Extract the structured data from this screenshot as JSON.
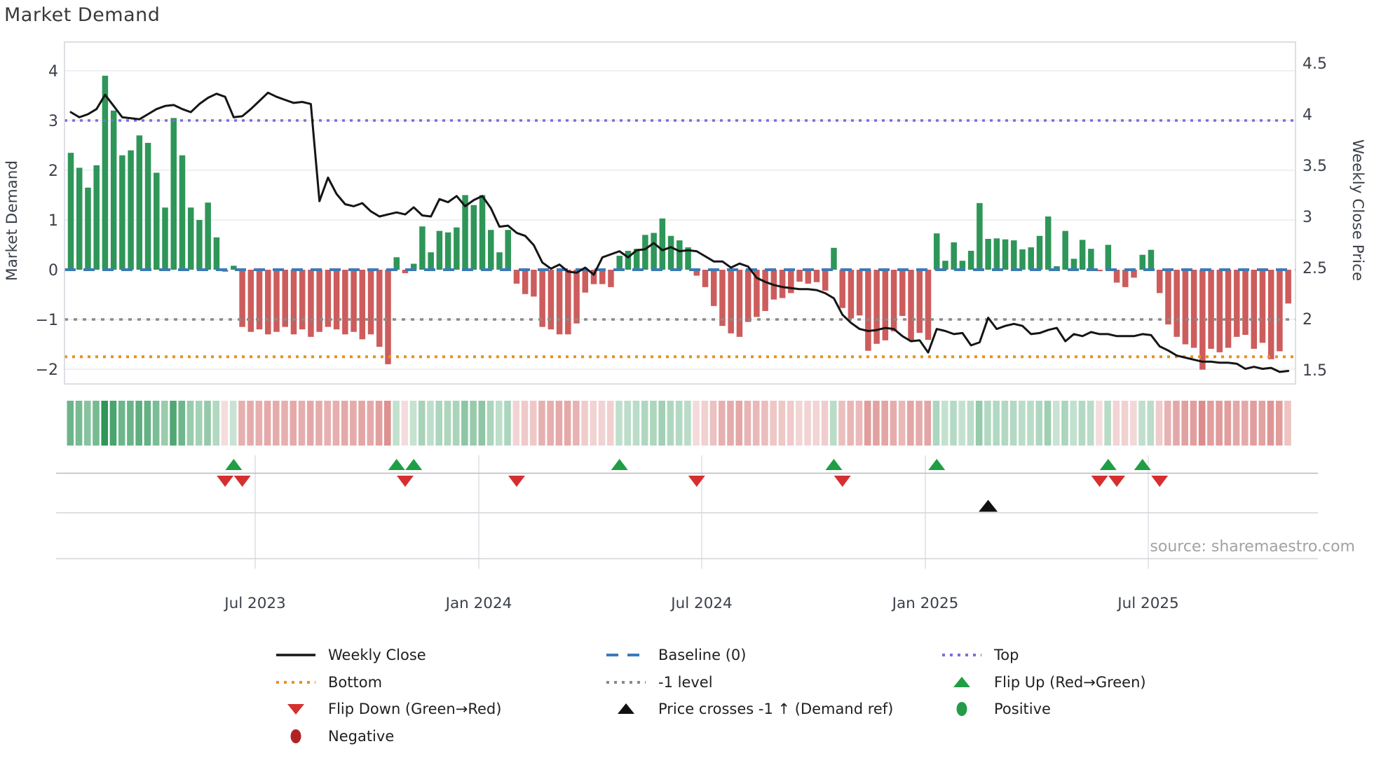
{
  "title": "Market Demand",
  "source": "source: sharemaestro.com",
  "axes": {
    "left_label": "Market Demand",
    "right_label": "Weekly Close Price",
    "left_ticks": [
      4,
      3,
      2,
      1,
      0,
      -1,
      -2
    ],
    "right_ticks": [
      4.5,
      4,
      3.5,
      3,
      2.5,
      2,
      1.5
    ],
    "x_tick_labels": [
      "Jul 2023",
      "Jan 2024",
      "Jul 2024",
      "Jan 2025",
      "Jul 2025"
    ]
  },
  "colors": {
    "bar_positive": "#2e9658",
    "bar_negative": "#cd5c5c",
    "price_line": "#151515",
    "baseline": "#3d7ab5",
    "top_level": "#7a6fd8",
    "bottom_level": "#e8921e",
    "minus1_level": "#8a8a8a",
    "flip_up": "#1f9e46",
    "flip_down": "#d62f2f",
    "price_cross": "#111111",
    "positive_dot": "#259b48",
    "negative_dot": "#b22222",
    "grid": "#ececf1",
    "panel_grid": "#c9c9cf",
    "spine": "#d4d4dc",
    "tick_text": "#3a3f4a"
  },
  "chart_data": {
    "type": "combo",
    "title": "Market Demand",
    "x": {
      "freq": "weekly",
      "start": "Feb 2023",
      "end": "Oct 2025",
      "tick_labels": [
        "Jul 2023",
        "Jan 2024",
        "Jul 2024",
        "Jan 2025",
        "Jul 2025"
      ]
    },
    "left_axis": {
      "label": "Market Demand",
      "range": [
        -2.3,
        4.6
      ],
      "ticks": [
        4,
        3,
        2,
        1,
        0,
        -1,
        -2
      ]
    },
    "right_axis": {
      "label": "Weekly Close Price",
      "range": [
        1.39,
        4.73
      ],
      "ticks": [
        4.5,
        4,
        3.5,
        3,
        2.5,
        2,
        1.5
      ]
    },
    "levels": {
      "top": 3.0,
      "baseline": 0.0,
      "minus1": -1.0,
      "bottom": -1.75
    },
    "series": [
      {
        "name": "Market Demand",
        "type": "bar",
        "values": [
          2.35,
          2.05,
          1.65,
          2.1,
          3.9,
          3.2,
          2.3,
          2.4,
          2.7,
          2.55,
          1.95,
          1.25,
          3.05,
          2.3,
          1.25,
          1.0,
          1.35,
          0.65,
          -0.04,
          0.08,
          -1.15,
          -1.25,
          -1.2,
          -1.3,
          -1.25,
          -1.15,
          -1.3,
          -1.2,
          -1.35,
          -1.25,
          -1.15,
          -1.2,
          -1.3,
          -1.25,
          -1.4,
          -1.3,
          -1.55,
          -1.9,
          0.25,
          -0.07,
          0.12,
          0.87,
          0.35,
          0.78,
          0.75,
          0.85,
          1.5,
          1.3,
          1.5,
          0.8,
          0.35,
          0.8,
          -0.28,
          -0.49,
          -0.54,
          -1.15,
          -1.2,
          -1.3,
          -1.3,
          -1.08,
          -0.46,
          -0.29,
          -0.29,
          -0.35,
          0.28,
          0.38,
          0.42,
          0.7,
          0.74,
          1.03,
          0.68,
          0.59,
          0.45,
          -0.12,
          -0.35,
          -0.73,
          -1.13,
          -1.28,
          -1.35,
          -1.05,
          -0.95,
          -0.83,
          -0.6,
          -0.57,
          -0.47,
          -0.24,
          -0.28,
          -0.25,
          -0.42,
          0.44,
          -0.77,
          -0.98,
          -0.92,
          -1.63,
          -1.49,
          -1.42,
          -1.24,
          -0.93,
          -1.42,
          -1.27,
          -1.41,
          0.73,
          0.18,
          0.55,
          0.18,
          0.38,
          1.34,
          0.62,
          0.63,
          0.61,
          0.59,
          0.41,
          0.45,
          0.68,
          1.07,
          0.07,
          0.78,
          0.22,
          0.6,
          0.42,
          -0.03,
          0.5,
          -0.26,
          -0.35,
          -0.16,
          0.3,
          0.4,
          -0.47,
          -1.1,
          -1.35,
          -1.5,
          -1.57,
          -2.01,
          -1.59,
          -1.66,
          -1.57,
          -1.35,
          -1.31,
          -1.59,
          -1.47,
          -1.8,
          -1.64,
          -0.68
        ]
      },
      {
        "name": "Weekly Close",
        "type": "line",
        "values": [
          4.02,
          3.97,
          4.0,
          4.05,
          4.19,
          4.08,
          3.97,
          3.96,
          3.95,
          4.0,
          4.05,
          4.08,
          4.09,
          4.05,
          4.02,
          4.1,
          4.16,
          4.2,
          4.17,
          3.97,
          3.98,
          4.05,
          4.13,
          4.21,
          4.17,
          4.14,
          4.11,
          4.12,
          4.1,
          3.15,
          3.38,
          3.22,
          3.12,
          3.1,
          3.13,
          3.05,
          3.0,
          3.02,
          3.04,
          3.02,
          3.09,
          3.01,
          3.0,
          3.17,
          3.14,
          3.2,
          3.1,
          3.16,
          3.2,
          3.08,
          2.9,
          2.91,
          2.84,
          2.81,
          2.72,
          2.55,
          2.49,
          2.53,
          2.46,
          2.45,
          2.5,
          2.43,
          2.6,
          2.63,
          2.66,
          2.6,
          2.67,
          2.68,
          2.74,
          2.67,
          2.7,
          2.66,
          2.67,
          2.66,
          2.61,
          2.56,
          2.56,
          2.5,
          2.54,
          2.51,
          2.4,
          2.36,
          2.33,
          2.31,
          2.3,
          2.29,
          2.29,
          2.28,
          2.25,
          2.2,
          2.04,
          1.96,
          1.9,
          1.88,
          1.89,
          1.91,
          1.9,
          1.83,
          1.78,
          1.79,
          1.67,
          1.9,
          1.88,
          1.85,
          1.86,
          1.74,
          1.77,
          2.01,
          1.9,
          1.93,
          1.95,
          1.93,
          1.85,
          1.86,
          1.89,
          1.91,
          1.78,
          1.85,
          1.83,
          1.87,
          1.85,
          1.85,
          1.83,
          1.83,
          1.83,
          1.85,
          1.84,
          1.73,
          1.69,
          1.64,
          1.62,
          1.6,
          1.58,
          1.58,
          1.57,
          1.57,
          1.56,
          1.51,
          1.53,
          1.51,
          1.52,
          1.48,
          1.49
        ]
      }
    ],
    "markers": {
      "flip_up_weeks": [
        19,
        38,
        40,
        64,
        89,
        101,
        121,
        125
      ],
      "flip_down_weeks": [
        18,
        20,
        39,
        52,
        73,
        90,
        120,
        122,
        127
      ],
      "price_cross_up_weeks": [
        107
      ]
    },
    "heatmap": "sign_and_magnitude_of_demand_bars"
  },
  "legend": {
    "columns": [
      {
        "items": [
          {
            "label": "Weekly Close",
            "swatch": "solid-line",
            "color": "#151515"
          },
          {
            "label": "Bottom",
            "swatch": "dotted-line",
            "color": "#e8921e"
          },
          {
            "label": "Flip Down (Green→Red)",
            "swatch": "triangle-down",
            "color": "#d62f2f"
          },
          {
            "label": "Negative",
            "swatch": "circle",
            "color": "#b22222"
          }
        ]
      },
      {
        "items": [
          {
            "label": "Baseline (0)",
            "swatch": "dashed-line",
            "color": "#3d7ab5"
          },
          {
            "label": "-1 level",
            "swatch": "dotted-line",
            "color": "#8a8a8a"
          },
          {
            "label": "Price crosses -1 ↑ (Demand ref)",
            "swatch": "triangle-up",
            "color": "#111111"
          }
        ]
      },
      {
        "items": [
          {
            "label": "Top",
            "swatch": "dotted-line",
            "color": "#7a6fd8"
          },
          {
            "label": "Flip Up (Red→Green)",
            "swatch": "triangle-up",
            "color": "#1f9e46"
          },
          {
            "label": "Positive",
            "swatch": "circle",
            "color": "#259b48"
          }
        ]
      }
    ]
  }
}
